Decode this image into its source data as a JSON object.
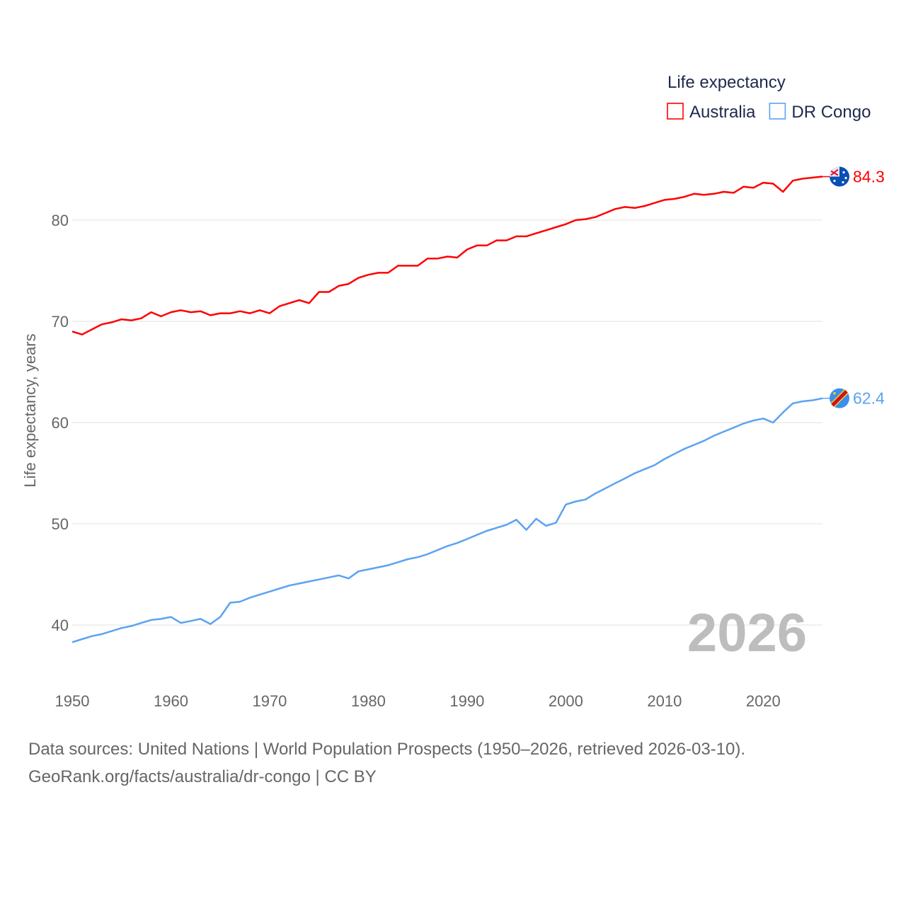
{
  "chart_data": {
    "type": "line",
    "title": "",
    "xlabel": "",
    "ylabel": "Life expectancy, years",
    "xlim": [
      1950,
      2026
    ],
    "ylim": [
      35,
      87
    ],
    "grid": true,
    "yticks": [
      40,
      50,
      60,
      70,
      80
    ],
    "xticks": [
      1950,
      1960,
      1970,
      1980,
      1990,
      2000,
      2010,
      2020
    ],
    "legend": {
      "title": "Life expectancy",
      "placement": "top-right"
    },
    "watermark_year": "2026",
    "x_start": 1950,
    "series": [
      {
        "name": "Australia",
        "color": "#ff0000",
        "end_label": "84.3",
        "flag": "australia-flag",
        "values": [
          69.0,
          68.7,
          69.2,
          69.7,
          69.9,
          70.2,
          70.1,
          70.3,
          70.9,
          70.5,
          70.9,
          71.1,
          70.9,
          71.0,
          70.6,
          70.8,
          70.8,
          71.0,
          70.8,
          71.1,
          70.8,
          71.5,
          71.8,
          72.1,
          71.8,
          72.9,
          72.9,
          73.5,
          73.7,
          74.3,
          74.6,
          74.8,
          74.8,
          75.5,
          75.5,
          75.5,
          76.2,
          76.2,
          76.4,
          76.3,
          77.1,
          77.5,
          77.5,
          78.0,
          78.0,
          78.4,
          78.4,
          78.7,
          79.0,
          79.3,
          79.6,
          80.0,
          80.1,
          80.3,
          80.7,
          81.1,
          81.3,
          81.2,
          81.4,
          81.7,
          82.0,
          82.1,
          82.3,
          82.6,
          82.5,
          82.6,
          82.8,
          82.7,
          83.3,
          83.2,
          83.7,
          83.6,
          82.8,
          83.9,
          84.1,
          84.2,
          84.3
        ]
      },
      {
        "name": "DR Congo",
        "color": "#5ba3f0",
        "end_label": "62.4",
        "flag": "dr-congo-flag",
        "values": [
          38.3,
          38.6,
          38.9,
          39.1,
          39.4,
          39.7,
          39.9,
          40.2,
          40.5,
          40.6,
          40.8,
          40.2,
          40.4,
          40.6,
          40.1,
          40.8,
          42.2,
          42.3,
          42.7,
          43.0,
          43.3,
          43.6,
          43.9,
          44.1,
          44.3,
          44.5,
          44.7,
          44.9,
          44.6,
          45.3,
          45.5,
          45.7,
          45.9,
          46.2,
          46.5,
          46.7,
          47.0,
          47.4,
          47.8,
          48.1,
          48.5,
          48.9,
          49.3,
          49.6,
          49.9,
          50.4,
          49.4,
          50.5,
          49.8,
          50.1,
          51.9,
          52.2,
          52.4,
          53.0,
          53.5,
          54.0,
          54.5,
          55.0,
          55.4,
          55.8,
          56.4,
          56.9,
          57.4,
          57.8,
          58.2,
          58.7,
          59.1,
          59.5,
          59.9,
          60.2,
          60.4,
          60.0,
          61.0,
          61.9,
          62.1,
          62.2,
          62.4
        ]
      }
    ]
  },
  "footer": {
    "line1": "Data sources: United Nations | World Population Prospects (1950–2026, retrieved 2026-03-10).",
    "line2": "GeoRank.org/facts/australia/dr-congo | CC BY"
  }
}
